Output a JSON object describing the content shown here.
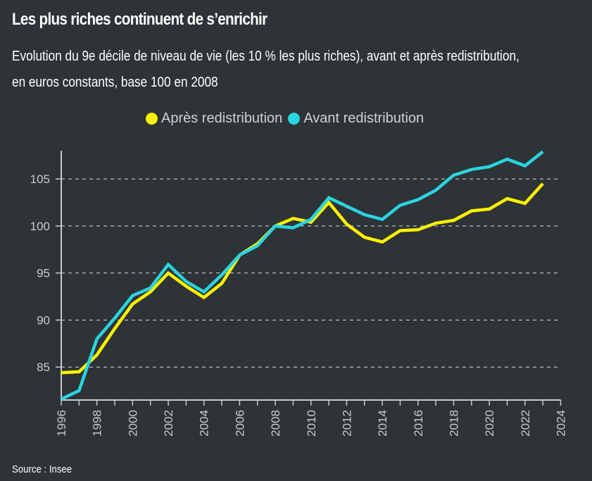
{
  "title": "Les plus riches continuent de s’enrichir",
  "subtitle_line1": "Evolution du 9e décile de niveau de vie (les 10 % les plus riches), avant et après redistribution,",
  "subtitle_line2": "en euros constants, base 100 en 2008",
  "source": "Source : Insee",
  "colors": {
    "background": "#2d3337",
    "apres": "#fff200",
    "avant": "#2ad4e0",
    "axis": "#c8cbcd",
    "grid": "#d9dcdd"
  },
  "chart_data": {
    "type": "line",
    "title": "Les plus riches continuent de s’enrichir",
    "xlabel": "",
    "ylabel": "",
    "xlim": [
      1996,
      2024
    ],
    "ylim": [
      81.5,
      108
    ],
    "grid": "horizontal dashed",
    "legend_position": "top-center",
    "x_ticks": [
      1996,
      1998,
      2000,
      2002,
      2004,
      2006,
      2008,
      2010,
      2012,
      2014,
      2016,
      2018,
      2020,
      2022,
      2024
    ],
    "y_ticks": [
      85,
      90,
      95,
      100,
      105
    ],
    "x": [
      1996,
      1997,
      1998,
      1999,
      2000,
      2001,
      2002,
      2003,
      2004,
      2005,
      2006,
      2007,
      2008,
      2009,
      2010,
      2011,
      2012,
      2013,
      2014,
      2015,
      2016,
      2017,
      2018,
      2019,
      2020,
      2021,
      2022,
      2023
    ],
    "series": [
      {
        "name": "Après redistribution",
        "color": "#fff200",
        "values": [
          84.4,
          84.5,
          86.3,
          89.1,
          91.7,
          93.0,
          95.0,
          93.6,
          92.4,
          93.9,
          96.9,
          98.1,
          100.0,
          100.8,
          100.4,
          102.5,
          100.2,
          98.8,
          98.3,
          99.5,
          99.6,
          100.3,
          100.6,
          101.6,
          101.8,
          102.9,
          102.4,
          104.5
        ]
      },
      {
        "name": "Avant redistribution",
        "color": "#2ad4e0",
        "values": [
          81.6,
          82.5,
          88.0,
          90.2,
          92.6,
          93.4,
          95.9,
          94.1,
          93.0,
          94.8,
          96.9,
          97.9,
          100.0,
          99.8,
          100.7,
          103.0,
          102.1,
          101.2,
          100.7,
          102.2,
          102.8,
          103.8,
          105.4,
          106.0,
          106.3,
          107.1,
          106.4,
          107.9
        ]
      }
    ]
  }
}
